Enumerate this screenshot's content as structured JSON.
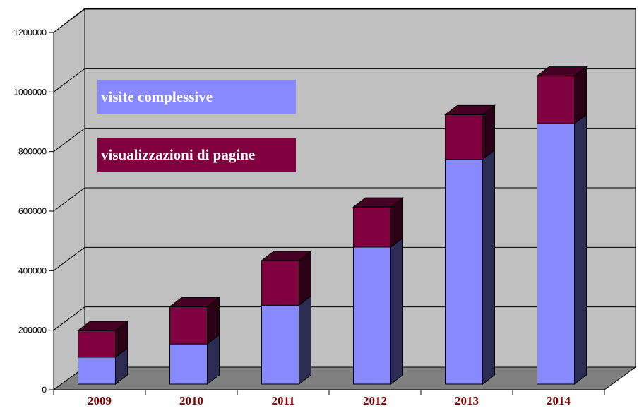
{
  "chart_data": {
    "type": "bar",
    "stacked": true,
    "three_d": true,
    "categories": [
      "2009",
      "2010",
      "2011",
      "2012",
      "2013",
      "2014"
    ],
    "series": [
      {
        "name": "visite complessive",
        "values": [
          90000,
          135000,
          265000,
          460000,
          755000,
          875000
        ],
        "color": "#8888ff"
      },
      {
        "name": "visualizzazioni di pagine",
        "values": [
          90000,
          125000,
          150000,
          135000,
          150000,
          160000
        ],
        "color": "#800040"
      }
    ],
    "yticks": [
      "0",
      "200000",
      "400000",
      "600000",
      "800000",
      "1000000",
      "1200000"
    ],
    "ylim": [
      0,
      1200000
    ],
    "grid": true,
    "legend_position": "inside-top-left",
    "colors": {
      "wall": "#c0c0c0",
      "floor": "#808080",
      "gridline": "#000000",
      "category_label": "#800000"
    }
  }
}
